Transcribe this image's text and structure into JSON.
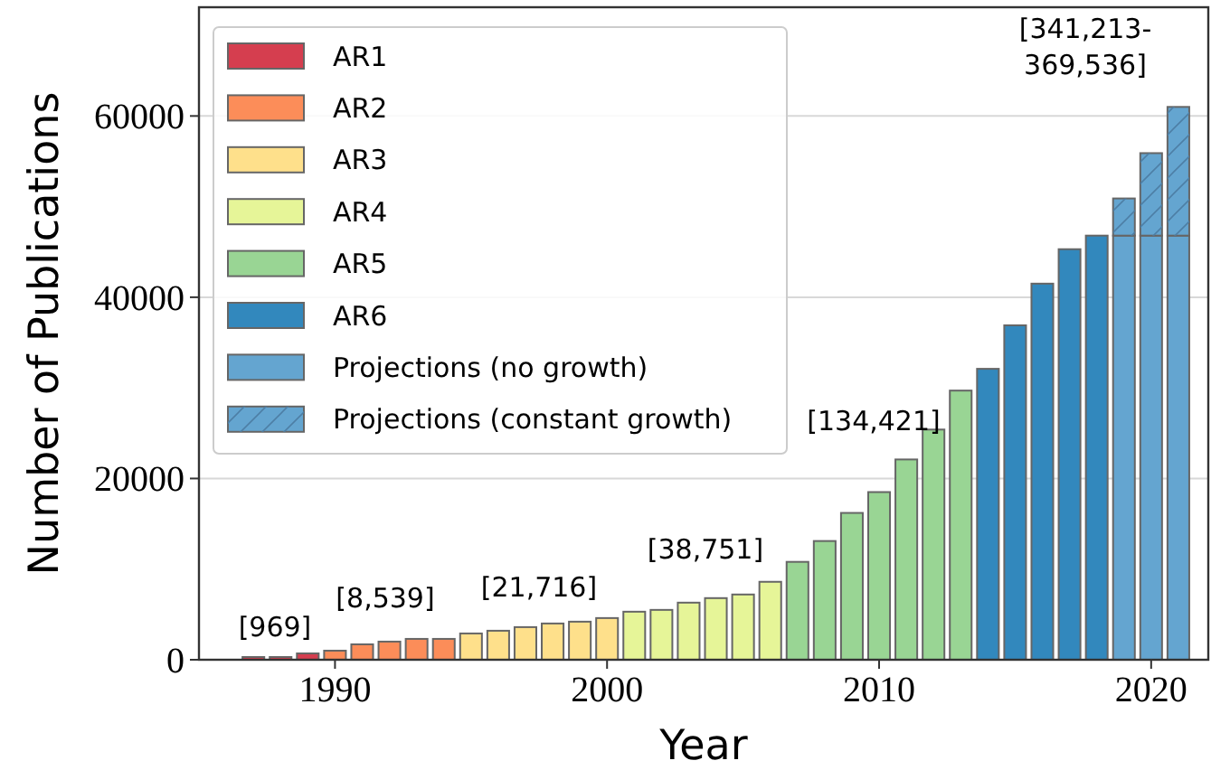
{
  "chart_data": {
    "type": "bar",
    "xlabel": "Year",
    "ylabel": "Number of Publications",
    "stacked": true,
    "grid": "y",
    "legend": "top left",
    "xlim": [
      1985,
      2022.1
    ],
    "xticks": [
      1990,
      2000,
      2010,
      2020
    ],
    "ylim": [
      0,
      72000
    ],
    "yticks": [
      0,
      20000,
      40000,
      60000
    ],
    "x": [
      1987,
      1988,
      1989,
      1990,
      1991,
      1992,
      1993,
      1994,
      1995,
      1996,
      1997,
      1998,
      1999,
      2000,
      2001,
      2002,
      2003,
      2004,
      2005,
      2006,
      2007,
      2008,
      2009,
      2010,
      2011,
      2012,
      2013,
      2014,
      2015,
      2016,
      2017,
      2018,
      2019,
      2020,
      2021
    ],
    "series": [
      {
        "name": "AR1",
        "color": "#d53e4f",
        "values": [
          300,
          300,
          700,
          null,
          null,
          null,
          null,
          null,
          null,
          null,
          null,
          null,
          null,
          null,
          null,
          null,
          null,
          null,
          null,
          null,
          null,
          null,
          null,
          null,
          null,
          null,
          null,
          null,
          null,
          null,
          null,
          null,
          null,
          null,
          null
        ]
      },
      {
        "name": "AR2",
        "color": "#fc8d59",
        "values": [
          null,
          null,
          null,
          1000,
          1700,
          2000,
          2300,
          2300,
          null,
          null,
          null,
          null,
          null,
          null,
          null,
          null,
          null,
          null,
          null,
          null,
          null,
          null,
          null,
          null,
          null,
          null,
          null,
          null,
          null,
          null,
          null,
          null,
          null,
          null,
          null
        ]
      },
      {
        "name": "AR3",
        "color": "#fee08b",
        "values": [
          null,
          null,
          null,
          null,
          null,
          null,
          null,
          null,
          2900,
          3200,
          3600,
          4000,
          4200,
          4600,
          null,
          null,
          null,
          null,
          null,
          null,
          null,
          null,
          null,
          null,
          null,
          null,
          null,
          null,
          null,
          null,
          null,
          null,
          null,
          null,
          null
        ]
      },
      {
        "name": "AR4",
        "color": "#e6f598",
        "values": [
          null,
          null,
          null,
          null,
          null,
          null,
          null,
          null,
          null,
          null,
          null,
          null,
          null,
          null,
          5300,
          5500,
          6300,
          6800,
          7200,
          8600,
          null,
          null,
          null,
          null,
          null,
          null,
          null,
          null,
          null,
          null,
          null,
          null,
          null,
          null,
          null
        ]
      },
      {
        "name": "AR5",
        "color": "#99d594",
        "values": [
          null,
          null,
          null,
          null,
          null,
          null,
          null,
          null,
          null,
          null,
          null,
          null,
          null,
          null,
          null,
          null,
          null,
          null,
          null,
          null,
          10800,
          13100,
          16200,
          18500,
          22100,
          25400,
          29700,
          null,
          null,
          null,
          null,
          null,
          null,
          null,
          null
        ]
      },
      {
        "name": "AR6",
        "color": "#3288bd",
        "values": [
          null,
          null,
          null,
          null,
          null,
          null,
          null,
          null,
          null,
          null,
          null,
          null,
          null,
          null,
          null,
          null,
          null,
          null,
          null,
          null,
          null,
          null,
          null,
          null,
          null,
          null,
          null,
          32100,
          36900,
          41500,
          45300,
          46800,
          null,
          null,
          null
        ]
      },
      {
        "name": "Projections (no growth)",
        "color": "#64a5d0",
        "values": [
          null,
          null,
          null,
          null,
          null,
          null,
          null,
          null,
          null,
          null,
          null,
          null,
          null,
          null,
          null,
          null,
          null,
          null,
          null,
          null,
          null,
          null,
          null,
          null,
          null,
          null,
          null,
          null,
          null,
          null,
          null,
          null,
          46800,
          46800,
          46800
        ]
      },
      {
        "name": "Projections (constant growth)",
        "color": "#64a5d0",
        "values": [
          null,
          null,
          null,
          null,
          null,
          null,
          null,
          null,
          null,
          null,
          null,
          null,
          null,
          null,
          null,
          null,
          null,
          null,
          null,
          null,
          null,
          null,
          null,
          null,
          null,
          null,
          null,
          null,
          null,
          null,
          null,
          null,
          4100,
          9100,
          14200
        ]
      }
    ],
    "annotations": [
      "[969]",
      "[8,539]",
      "[21,716]",
      "[38,751]",
      "[134,421]",
      "[341,213-\n369,536]"
    ]
  }
}
